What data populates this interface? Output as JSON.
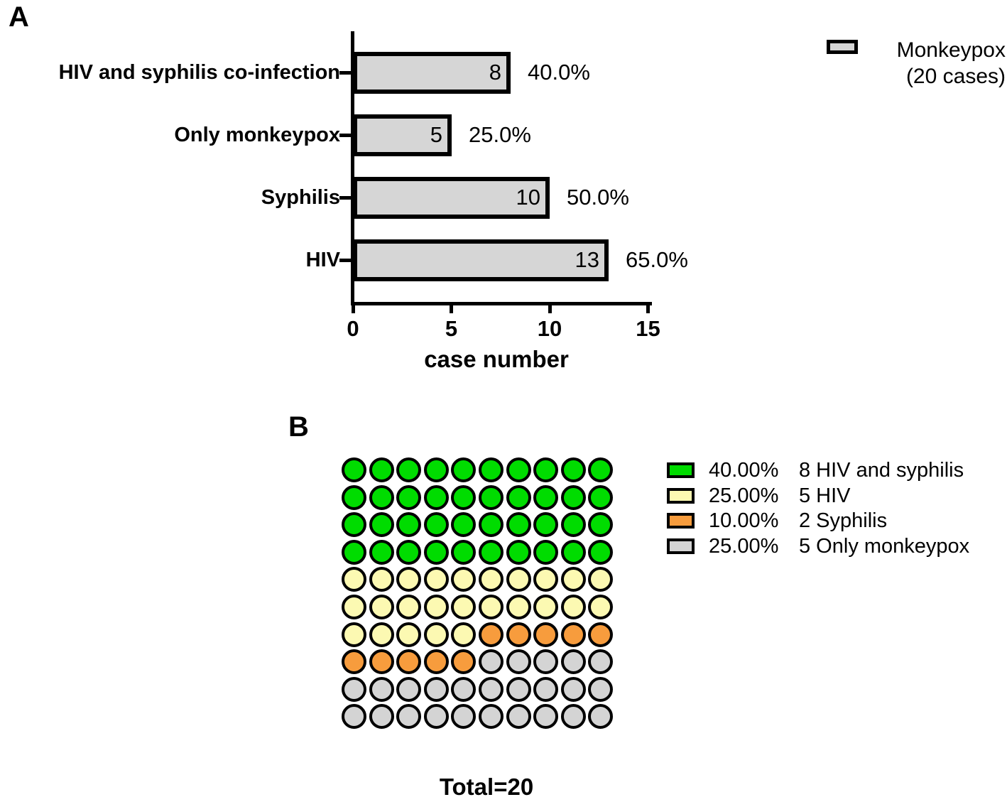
{
  "panel_a": {
    "label": "A",
    "xlabel": "case number",
    "legend": {
      "line1": "Monkeypox",
      "line2": "(20 cases)",
      "swatch_color": "#d6d6d6"
    }
  },
  "panel_b": {
    "label": "B",
    "total_label": "Total=20"
  },
  "chart_data": [
    {
      "type": "bar",
      "orientation": "horizontal",
      "title": "",
      "categories": [
        "HIV and syphilis co-infection",
        "Only monkeypox",
        "Syphilis",
        "HIV"
      ],
      "values": [
        8,
        5,
        10,
        13
      ],
      "value_labels": [
        "8",
        "5",
        "10",
        "13"
      ],
      "percent_labels": [
        "40.0%",
        "25.0%",
        "50.0%",
        "65.0%"
      ],
      "xlabel": "case number",
      "xlim": [
        0,
        15
      ],
      "xticks": [
        0,
        5,
        10,
        15
      ],
      "grid": false,
      "legend_position": "top-right",
      "legend": [
        {
          "label": "Monkeypox (20 cases)",
          "color": "#d6d6d6"
        }
      ],
      "bar_color": "#d6d6d6",
      "bar_border_color": "#000000"
    },
    {
      "type": "pie",
      "render": "waffle-dot-grid-10x10",
      "title": "",
      "caption": "Total=20",
      "total": 20,
      "dots_total": 100,
      "legend_position": "right",
      "slices": [
        {
          "label": "HIV and syphilis",
          "cases": 8,
          "percent": 40.0,
          "pct_label": "40.00%",
          "legend_label": "8 HIV and syphilis",
          "dots": 40,
          "color": "#00dc00"
        },
        {
          "label": "HIV",
          "cases": 5,
          "percent": 25.0,
          "pct_label": "25.00%",
          "legend_label": "5 HIV",
          "dots": 25,
          "color": "#fcf9b2"
        },
        {
          "label": "Syphilis",
          "cases": 2,
          "percent": 10.0,
          "pct_label": "10.00%",
          "legend_label": "2 Syphilis",
          "dots": 10,
          "color": "#f79c3d"
        },
        {
          "label": "Only monkeypox",
          "cases": 5,
          "percent": 25.0,
          "pct_label": "25.00%",
          "legend_label": "5 Only monkeypox",
          "dots": 25,
          "color": "#d4d4d4"
        }
      ]
    }
  ]
}
